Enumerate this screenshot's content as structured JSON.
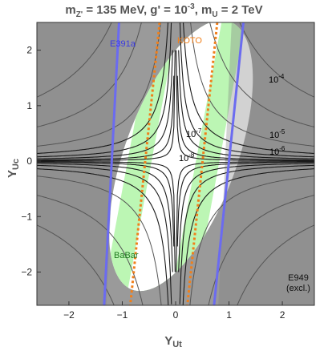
{
  "chart_data": {
    "type": "contour",
    "title": "m_Z' = 135 MeV, g' = 10^-3, m_U = 2 TeV",
    "title_parts": {
      "m1": "m",
      "s1": "Z'",
      "v1": " = 135 MeV, g' = 10",
      "p1": "-3",
      "m2": ", m",
      "s2": "U",
      "v2": " = 2 TeV"
    },
    "xlabel": {
      "base": "Y",
      "sub": "Ut"
    },
    "ylabel": {
      "base": "Y",
      "sub": "Uc"
    },
    "xlim": [
      -2.6,
      2.6
    ],
    "ylim": [
      -2.6,
      2.5
    ],
    "x_ticks": [
      "−2",
      "−1",
      "0",
      "1",
      "2"
    ],
    "y_ticks": [
      "−2",
      "−1",
      "0",
      "1",
      "2"
    ],
    "contour_labels": [
      {
        "base": "10",
        "exp": "-4"
      },
      {
        "base": "10",
        "exp": "-5"
      },
      {
        "base": "10",
        "exp": "-6"
      },
      {
        "base": "10",
        "exp": "-7"
      },
      {
        "base": "10",
        "exp": "-8"
      }
    ],
    "constraints": {
      "E391a": "E391a",
      "KOTO": "KOTO",
      "BaBar": "BaBar",
      "E949_line1": "E949",
      "E949_line2": "(excl.)"
    },
    "colors": {
      "excluded": "#9a9a9a",
      "allowed": "#ffffff",
      "babar": "#b8f5b0",
      "e391a": "#6b6bf0",
      "koto": "#f07f1a",
      "contour": "#1a1a1a",
      "title": "#555555"
    }
  }
}
